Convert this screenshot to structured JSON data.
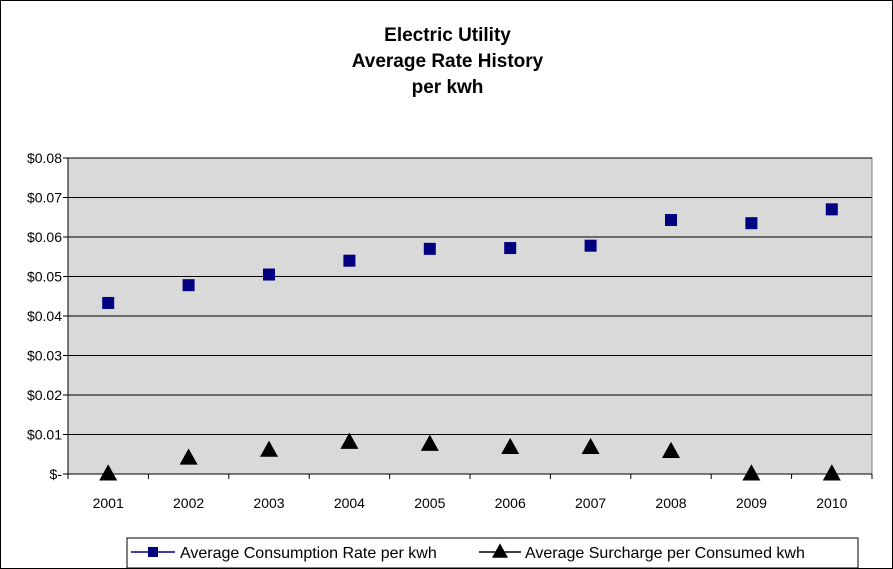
{
  "chart_data": {
    "type": "scatter",
    "title_lines": [
      "Electric Utility",
      "Average Rate History",
      "per kwh"
    ],
    "categories": [
      "2001",
      "2002",
      "2003",
      "2004",
      "2005",
      "2006",
      "2007",
      "2008",
      "2009",
      "2010"
    ],
    "y_ticks": [
      {
        "value": 0.0,
        "label": "$-"
      },
      {
        "value": 0.01,
        "label": "$0.01"
      },
      {
        "value": 0.02,
        "label": "$0.02"
      },
      {
        "value": 0.03,
        "label": "$0.03"
      },
      {
        "value": 0.04,
        "label": "$0.04"
      },
      {
        "value": 0.05,
        "label": "$0.05"
      },
      {
        "value": 0.06,
        "label": "$0.06"
      },
      {
        "value": 0.07,
        "label": "$0.07"
      },
      {
        "value": 0.08,
        "label": "$0.08"
      }
    ],
    "ylim": [
      0,
      0.08
    ],
    "grid": true,
    "legend_position": "bottom",
    "plot_background": "#d9d9d9",
    "series": [
      {
        "name": "Average Consumption Rate per kwh",
        "marker": "square",
        "color": "#000080",
        "values": [
          0.0433,
          0.0478,
          0.0505,
          0.054,
          0.057,
          0.0572,
          0.0578,
          0.0643,
          0.0635,
          0.067
        ]
      },
      {
        "name": "Average Surcharge per Consumed kwh",
        "marker": "triangle",
        "color": "#000000",
        "values": [
          0.0,
          0.004,
          0.006,
          0.008,
          0.0075,
          0.0067,
          0.0067,
          0.0057,
          0.0,
          0.0
        ]
      }
    ]
  }
}
